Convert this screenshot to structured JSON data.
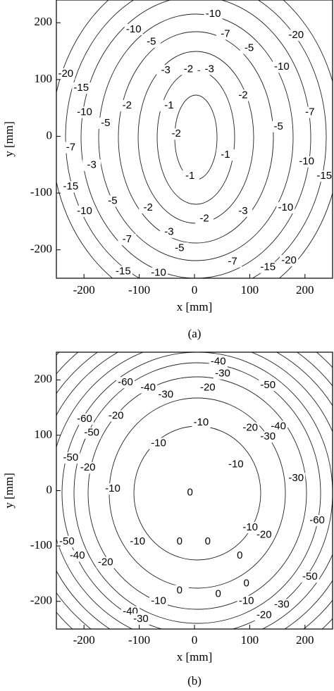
{
  "chart_data": [
    {
      "type": "contour",
      "xlabel": "x [mm]",
      "ylabel": "y [mm]",
      "caption": "(a)",
      "xlim": [
        -250,
        250
      ],
      "ylim": [
        -250,
        250
      ],
      "xticks": [
        -200,
        -100,
        0,
        100,
        200
      ],
      "yticks": [
        -200,
        -100,
        0,
        100,
        200
      ],
      "contour_labels": [
        {
          "x": 34,
          "y": 215,
          "level": -10
        },
        {
          "x": 56,
          "y": 180,
          "level": -7
        },
        {
          "x": 99,
          "y": 155,
          "level": -5
        },
        {
          "x": -110,
          "y": 188,
          "level": -10
        },
        {
          "x": -78,
          "y": 166,
          "level": -5
        },
        {
          "x": 184,
          "y": 178,
          "level": -20
        },
        {
          "x": -233,
          "y": 110,
          "level": -20
        },
        {
          "x": -205,
          "y": 85,
          "level": -15
        },
        {
          "x": -52,
          "y": 116,
          "level": -3
        },
        {
          "x": -11,
          "y": 118,
          "level": -2
        },
        {
          "x": 27,
          "y": 118,
          "level": -3
        },
        {
          "x": 158,
          "y": 122,
          "level": -10
        },
        {
          "x": 88,
          "y": 72,
          "level": -2
        },
        {
          "x": -46,
          "y": 54,
          "level": -1
        },
        {
          "x": 209,
          "y": 42,
          "level": -7
        },
        {
          "x": -199,
          "y": 42,
          "level": -10
        },
        {
          "x": -161,
          "y": 23,
          "level": -5
        },
        {
          "x": -224,
          "y": -20,
          "level": -7
        },
        {
          "x": 152,
          "y": 17,
          "level": -5
        },
        {
          "x": -122,
          "y": 54,
          "level": -2
        },
        {
          "x": -33,
          "y": 4,
          "level": -2
        },
        {
          "x": 56,
          "y": -33,
          "level": -1
        },
        {
          "x": -186,
          "y": -51,
          "level": -3
        },
        {
          "x": 203,
          "y": -45,
          "level": -10
        },
        {
          "x": -224,
          "y": -89,
          "level": -15
        },
        {
          "x": -148,
          "y": -114,
          "level": -5
        },
        {
          "x": -199,
          "y": -132,
          "level": -10
        },
        {
          "x": -84,
          "y": -126,
          "level": -2
        },
        {
          "x": 18,
          "y": -145,
          "level": -2
        },
        {
          "x": 88,
          "y": -132,
          "level": -3
        },
        {
          "x": 165,
          "y": -126,
          "level": -10
        },
        {
          "x": -122,
          "y": -182,
          "level": -7
        },
        {
          "x": -46,
          "y": -169,
          "level": -3
        },
        {
          "x": -27,
          "y": -197,
          "level": -5
        },
        {
          "x": 69,
          "y": -221,
          "level": -7
        },
        {
          "x": -129,
          "y": -238,
          "level": -15
        },
        {
          "x": -65,
          "y": -241,
          "level": -10
        },
        {
          "x": 133,
          "y": -231,
          "level": -15
        },
        {
          "x": 171,
          "y": -219,
          "level": -20
        },
        {
          "x": 235,
          "y": -70,
          "level": -15
        },
        {
          "x": -8,
          "y": -70,
          "level": -1
        }
      ]
    },
    {
      "type": "contour",
      "xlabel": "x [mm]",
      "ylabel": "y [mm]",
      "caption": "(b)",
      "xlim": [
        -250,
        250
      ],
      "ylim": [
        -250,
        250
      ],
      "xticks": [
        -200,
        -100,
        0,
        100,
        200
      ],
      "yticks": [
        -200,
        -100,
        0,
        100,
        200
      ],
      "contour_labels": [
        {
          "x": 43,
          "y": 233,
          "level": -40
        },
        {
          "x": 51,
          "y": 211,
          "level": -30
        },
        {
          "x": -125,
          "y": 195,
          "level": -60
        },
        {
          "x": -84,
          "y": 186,
          "level": -40
        },
        {
          "x": -52,
          "y": 173,
          "level": -30
        },
        {
          "x": 24,
          "y": 186,
          "level": -20
        },
        {
          "x": 133,
          "y": 190,
          "level": -50
        },
        {
          "x": -199,
          "y": 129,
          "level": -60
        },
        {
          "x": -186,
          "y": 104,
          "level": -50
        },
        {
          "x": -142,
          "y": 135,
          "level": -20
        },
        {
          "x": 12,
          "y": 123,
          "level": -10
        },
        {
          "x": 101,
          "y": 113,
          "level": -20
        },
        {
          "x": 133,
          "y": 97,
          "level": -30
        },
        {
          "x": 152,
          "y": 116,
          "level": -40
        },
        {
          "x": -65,
          "y": 85,
          "level": -10
        },
        {
          "x": -224,
          "y": 59,
          "level": -50
        },
        {
          "x": -193,
          "y": 41,
          "level": -20
        },
        {
          "x": -148,
          "y": 3,
          "level": -10
        },
        {
          "x": -8,
          "y": -4,
          "level": 0
        },
        {
          "x": 75,
          "y": 47,
          "level": -10
        },
        {
          "x": 184,
          "y": 22,
          "level": -30
        },
        {
          "x": 222,
          "y": -54,
          "level": -60
        },
        {
          "x": -231,
          "y": -92,
          "level": -50
        },
        {
          "x": -212,
          "y": -118,
          "level": -40
        },
        {
          "x": -161,
          "y": -130,
          "level": -20
        },
        {
          "x": -103,
          "y": -92,
          "level": -10
        },
        {
          "x": 126,
          "y": -80,
          "level": -20
        },
        {
          "x": 101,
          "y": -67,
          "level": -10
        },
        {
          "x": -27,
          "y": -92,
          "level": 0
        },
        {
          "x": 24,
          "y": -92,
          "level": 0
        },
        {
          "x": 82,
          "y": -118,
          "level": 0
        },
        {
          "x": 94,
          "y": -168,
          "level": 0
        },
        {
          "x": 43,
          "y": -187,
          "level": 0
        },
        {
          "x": -27,
          "y": -181,
          "level": 0
        },
        {
          "x": -65,
          "y": -200,
          "level": -10
        },
        {
          "x": 94,
          "y": -200,
          "level": -10
        },
        {
          "x": -116,
          "y": -219,
          "level": -40
        },
        {
          "x": -97,
          "y": -232,
          "level": -30
        },
        {
          "x": 209,
          "y": -156,
          "level": -50
        },
        {
          "x": 158,
          "y": -206,
          "level": -30
        },
        {
          "x": 126,
          "y": -225,
          "level": -20
        }
      ]
    }
  ]
}
